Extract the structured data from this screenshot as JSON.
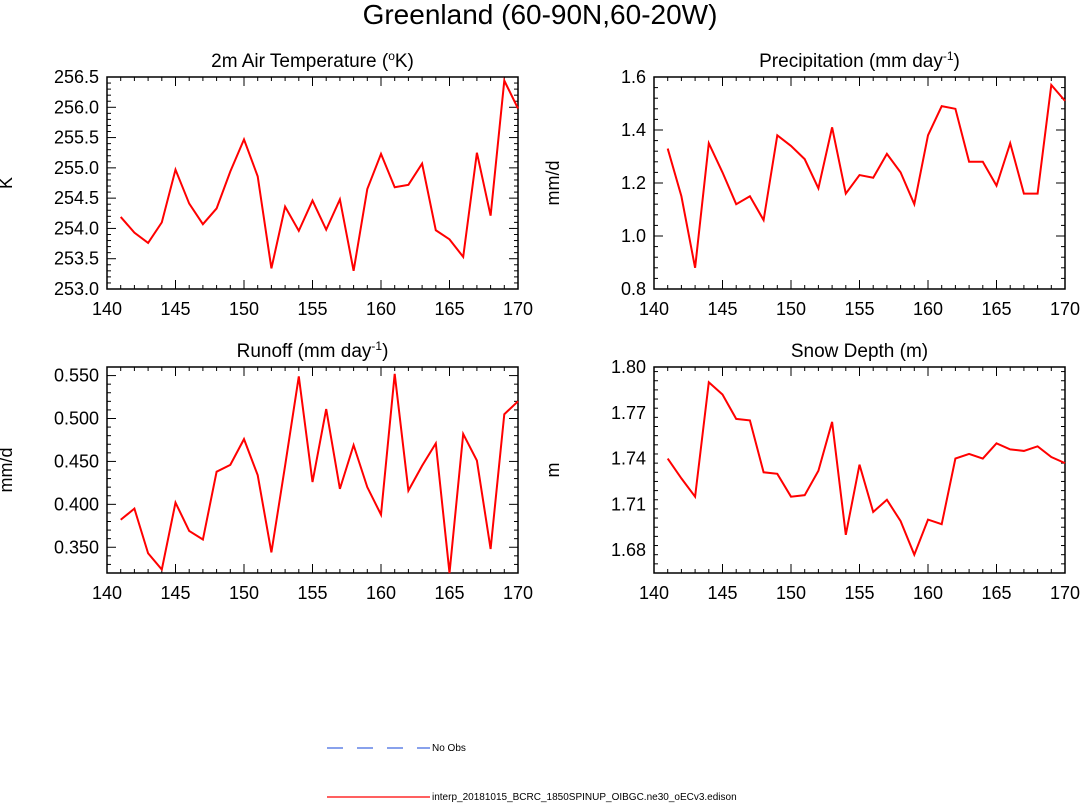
{
  "figure_title": "Greenland (60-90N,60-20W)",
  "legend": [
    {
      "label": "No Obs",
      "color": "#4169e1",
      "dash": "dashed"
    },
    {
      "label": "interp_20181015_BCRC_1850SPINUP_OIBGC.ne30_oECv3.edison",
      "color": "#ff0000",
      "dash": "solid"
    }
  ],
  "chart_data": [
    {
      "type": "line",
      "title_main": "2m Air Temperature (",
      "title_sup": "o",
      "title_tail": "K)",
      "xlabel": "",
      "ylabel": "K",
      "xlim": [
        140,
        170
      ],
      "ylim": [
        253.0,
        256.5
      ],
      "xticks": [
        140,
        145,
        150,
        155,
        160,
        165,
        170
      ],
      "yticks": [
        253.0,
        253.5,
        254.0,
        254.5,
        255.0,
        255.5,
        256.0,
        256.5
      ],
      "ytick_decimals": 1,
      "series": [
        {
          "name": "interp_20181015_BCRC_1850SPINUP_OIBGC.ne30_oECv3.edison",
          "x": [
            141,
            142,
            143,
            144,
            145,
            146,
            147,
            148,
            149,
            150,
            151,
            152,
            153,
            154,
            155,
            156,
            157,
            158,
            159,
            160,
            161,
            162,
            163,
            164,
            165,
            166,
            167,
            168,
            169,
            170
          ],
          "values": [
            254.19,
            253.93,
            253.76,
            254.1,
            254.97,
            254.41,
            254.07,
            254.33,
            254.94,
            255.47,
            254.86,
            253.34,
            254.36,
            253.96,
            254.46,
            253.98,
            254.48,
            253.3,
            254.65,
            255.23,
            254.68,
            254.72,
            255.07,
            253.97,
            253.82,
            253.53,
            255.25,
            254.21,
            256.44,
            255.98
          ]
        }
      ]
    },
    {
      "type": "line",
      "title_main": "Precipitation (mm day",
      "title_sup": "-1",
      "title_tail": ")",
      "xlabel": "",
      "ylabel": "mm/d",
      "xlim": [
        140,
        170
      ],
      "ylim": [
        0.8,
        1.6
      ],
      "xticks": [
        140,
        145,
        150,
        155,
        160,
        165,
        170
      ],
      "yticks": [
        0.8,
        1.0,
        1.2,
        1.4,
        1.6
      ],
      "ytick_decimals": 1,
      "series": [
        {
          "name": "interp_20181015_BCRC_1850SPINUP_OIBGC.ne30_oECv3.edison",
          "x": [
            141,
            142,
            143,
            144,
            145,
            146,
            147,
            148,
            149,
            150,
            151,
            152,
            153,
            154,
            155,
            156,
            157,
            158,
            159,
            160,
            161,
            162,
            163,
            164,
            165,
            166,
            167,
            168,
            169,
            170
          ],
          "values": [
            1.33,
            1.15,
            0.88,
            1.35,
            1.24,
            1.12,
            1.15,
            1.06,
            1.38,
            1.34,
            1.29,
            1.18,
            1.41,
            1.16,
            1.23,
            1.22,
            1.31,
            1.24,
            1.12,
            1.38,
            1.49,
            1.48,
            1.28,
            1.28,
            1.19,
            1.35,
            1.16,
            1.16,
            1.57,
            1.51
          ]
        }
      ]
    },
    {
      "type": "line",
      "title_main": "Runoff (mm day",
      "title_sup": "-1",
      "title_tail": ")",
      "xlabel": "",
      "ylabel": "mm/d",
      "xlim": [
        140,
        170
      ],
      "ylim": [
        0.32,
        0.56
      ],
      "xticks": [
        140,
        145,
        150,
        155,
        160,
        165,
        170
      ],
      "yticks": [
        0.35,
        0.4,
        0.45,
        0.5,
        0.55
      ],
      "ytick_decimals": 3,
      "series": [
        {
          "name": "interp_20181015_BCRC_1850SPINUP_OIBGC.ne30_oECv3.edison",
          "x": [
            141,
            142,
            143,
            144,
            145,
            146,
            147,
            148,
            149,
            150,
            151,
            152,
            153,
            154,
            155,
            156,
            157,
            158,
            159,
            160,
            161,
            162,
            163,
            164,
            165,
            166,
            167,
            168,
            169,
            170
          ],
          "values": [
            0.382,
            0.395,
            0.343,
            0.324,
            0.402,
            0.369,
            0.359,
            0.438,
            0.446,
            0.476,
            0.434,
            0.344,
            0.445,
            0.549,
            0.426,
            0.511,
            0.418,
            0.469,
            0.42,
            0.388,
            0.552,
            0.416,
            0.445,
            0.471,
            0.32,
            0.482,
            0.451,
            0.348,
            0.505,
            0.52
          ]
        }
      ]
    },
    {
      "type": "line",
      "title_main": "Snow Depth (m)",
      "title_sup": "",
      "title_tail": "",
      "xlabel": "",
      "ylabel": "m",
      "xlim": [
        140,
        170
      ],
      "ylim": [
        1.665,
        1.8
      ],
      "xticks": [
        140,
        145,
        150,
        155,
        160,
        165,
        170
      ],
      "yticks": [
        1.68,
        1.71,
        1.74,
        1.77,
        1.8
      ],
      "ytick_decimals": 2,
      "series": [
        {
          "name": "interp_20181015_BCRC_1850SPINUP_OIBGC.ne30_oECv3.edison",
          "x": [
            141,
            142,
            143,
            144,
            145,
            146,
            147,
            148,
            149,
            150,
            151,
            152,
            153,
            154,
            155,
            156,
            157,
            158,
            159,
            160,
            161,
            162,
            163,
            164,
            165,
            166,
            167,
            168,
            169,
            170
          ],
          "values": [
            1.74,
            1.727,
            1.715,
            1.79,
            1.782,
            1.766,
            1.765,
            1.731,
            1.73,
            1.715,
            1.716,
            1.732,
            1.764,
            1.69,
            1.736,
            1.705,
            1.713,
            1.699,
            1.677,
            1.7,
            1.697,
            1.74,
            1.743,
            1.74,
            1.75,
            1.746,
            1.745,
            1.748,
            1.741,
            1.737
          ]
        }
      ]
    }
  ]
}
